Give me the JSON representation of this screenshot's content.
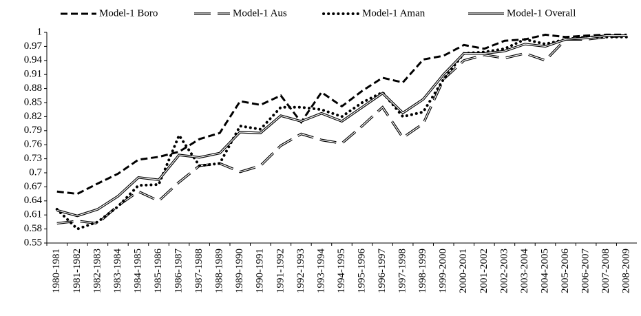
{
  "chart_data": {
    "type": "line",
    "categories": [
      "1980-1981",
      "1981-1982",
      "1982-1983",
      "1983-1984",
      "1984-1985",
      "1985-1986",
      "1986-1987",
      "1987-1988",
      "1988-1989",
      "1989-1990",
      "1990-1991",
      "1991-1992",
      "1992-1993",
      "1993-1994",
      "1994-1995",
      "1995-1996",
      "1996-1997",
      "1997-1998",
      "1998-1999",
      "1999-2000",
      "2000-2001",
      "2001-2002",
      "2002-2003",
      "2003-2004",
      "2004-2005",
      "2005-2006",
      "2006-2007",
      "2007-2008",
      "2008-2009"
    ],
    "series": [
      {
        "name": "Model-1 Boro",
        "color": "#000000",
        "values": [
          0.66,
          0.655,
          0.677,
          0.698,
          0.728,
          0.734,
          0.745,
          0.772,
          0.785,
          0.853,
          0.845,
          0.865,
          0.808,
          0.872,
          0.842,
          0.875,
          0.903,
          0.893,
          0.942,
          0.95,
          0.973,
          0.965,
          0.982,
          0.985,
          0.995,
          0.99,
          0.993,
          0.995,
          0.995
        ]
      },
      {
        "name": "Model-1 Aus",
        "color": "#000000",
        "values": [
          0.592,
          0.597,
          0.592,
          0.63,
          0.66,
          0.64,
          0.68,
          0.715,
          0.72,
          0.702,
          0.715,
          0.758,
          0.783,
          0.77,
          0.763,
          0.8,
          0.84,
          0.775,
          0.805,
          0.9,
          0.94,
          0.952,
          0.945,
          0.955,
          0.94,
          0.985,
          0.985,
          0.99,
          0.993
        ]
      },
      {
        "name": "Model-1 Aman",
        "color": "#000000",
        "values": [
          0.622,
          0.58,
          0.595,
          0.628,
          0.673,
          0.675,
          0.78,
          0.715,
          0.72,
          0.8,
          0.793,
          0.84,
          0.84,
          0.835,
          0.82,
          0.85,
          0.872,
          0.82,
          0.83,
          0.9,
          0.955,
          0.958,
          0.965,
          0.985,
          0.975,
          0.985,
          0.99,
          0.99,
          0.99
        ]
      },
      {
        "name": "Model-1 Overall",
        "color": "#000000",
        "values": [
          0.62,
          0.608,
          0.622,
          0.65,
          0.69,
          0.685,
          0.738,
          0.733,
          0.742,
          0.787,
          0.785,
          0.822,
          0.81,
          0.827,
          0.81,
          0.84,
          0.87,
          0.828,
          0.857,
          0.91,
          0.955,
          0.955,
          0.96,
          0.975,
          0.97,
          0.985,
          0.988,
          0.993,
          0.993
        ]
      }
    ],
    "ylim": [
      0.55,
      1
    ],
    "yticks": [
      0.55,
      0.58,
      0.61,
      0.64,
      0.67,
      0.7,
      0.73,
      0.76,
      0.79,
      0.82,
      0.85,
      0.88,
      0.91,
      0.94,
      0.97,
      1
    ],
    "grid": false,
    "legend": "top"
  }
}
